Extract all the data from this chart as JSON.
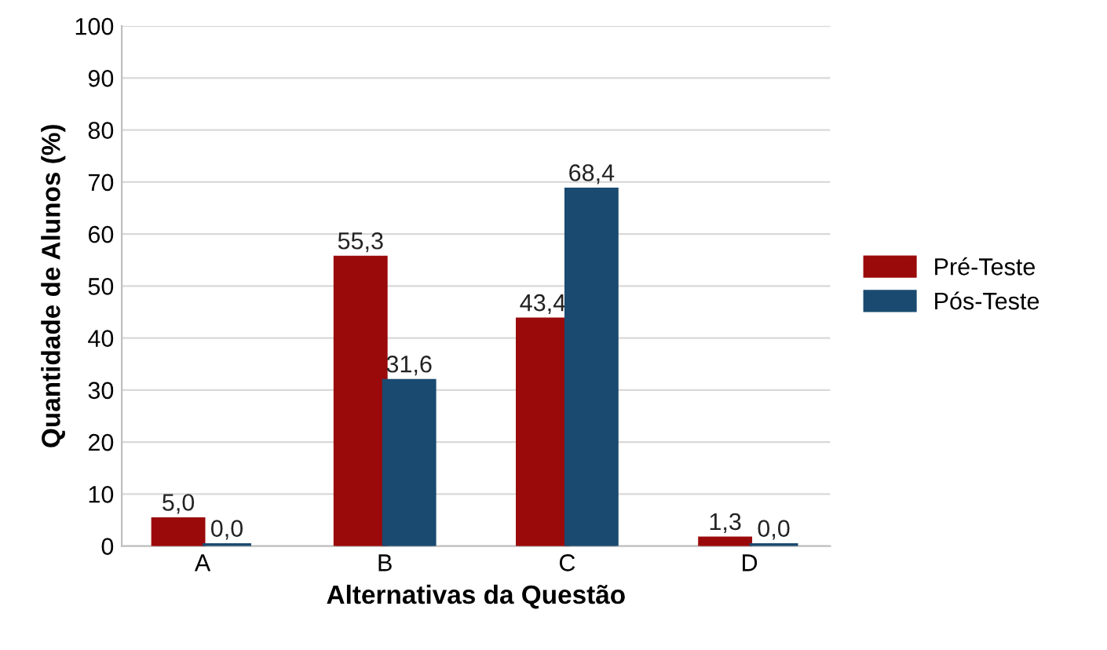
{
  "chart_data": {
    "type": "bar",
    "xlabel": "Alternativas da Questão",
    "ylabel": "Quantidade de Alunos (%)",
    "categories": [
      "A",
      "B",
      "C",
      "D"
    ],
    "series": [
      {
        "name": "Pré-Teste",
        "color": "#9b0a0a",
        "values": [
          5.0,
          55.3,
          43.4,
          1.3
        ],
        "value_labels": [
          "5,0",
          "55,3",
          "43,4",
          "1,3"
        ]
      },
      {
        "name": "Pós-Teste",
        "color": "#1a4a70",
        "values": [
          0.0,
          31.6,
          68.4,
          0.0
        ],
        "value_labels": [
          "0,0",
          "31,6",
          "68,4",
          "0,0"
        ]
      }
    ],
    "ylim": [
      0,
      100
    ],
    "yticks": [
      0,
      10,
      20,
      30,
      40,
      50,
      60,
      70,
      80,
      90,
      100
    ],
    "grid": "y",
    "legend": "right"
  }
}
